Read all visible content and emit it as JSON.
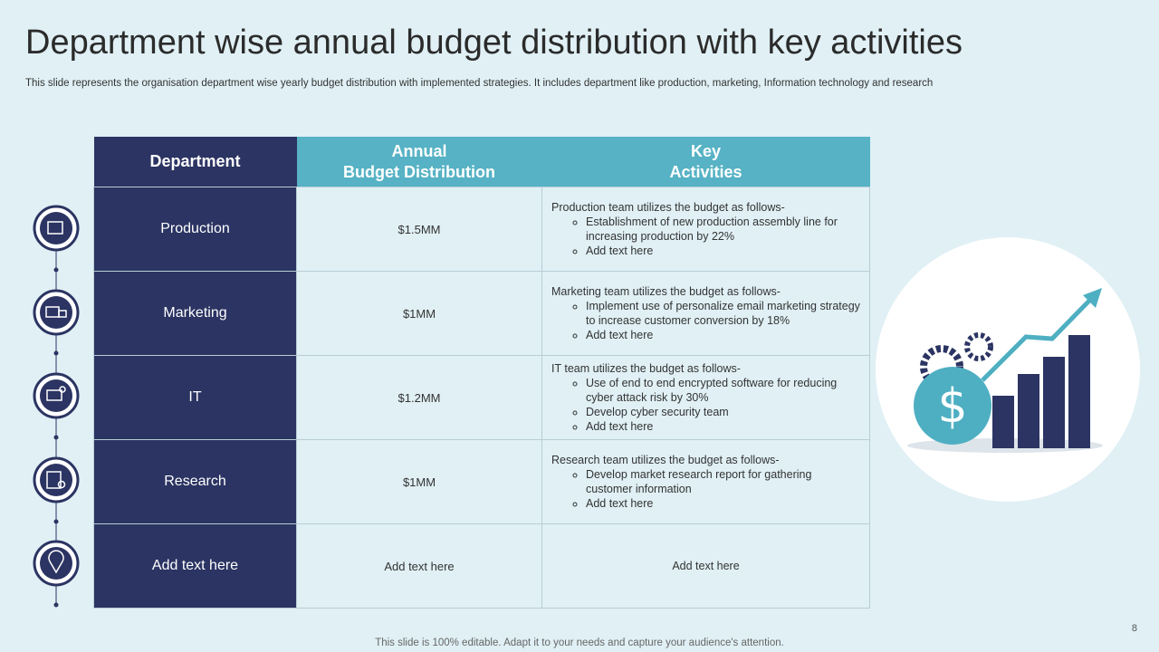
{
  "title": "Department wise annual budget distribution with key activities",
  "subtitle": "This slide represents the organisation department wise yearly budget distribution with implemented strategies. It includes department like production, marketing, Information technology and research",
  "table": {
    "headers": [
      [
        "Department"
      ],
      [
        "Annual",
        "Budget Distribution"
      ],
      [
        "Key",
        "Activities"
      ]
    ],
    "rows": [
      [
        "Production",
        "$1.5MM",
        {
          "intro": "Production team utilizes the budget as follows-",
          "bullets": [
            "Establishment of new production assembly line for increasing production  by 22%",
            "Add text here"
          ]
        }
      ],
      [
        "Marketing",
        "$1MM",
        {
          "intro": "Marketing team utilizes the budget as follows-",
          "bullets": [
            "Implement  use of personalize  email marketing strategy to increase customer conversion  by 18%",
            "Add text here"
          ]
        }
      ],
      [
        "IT",
        "$1.2MM",
        {
          "intro": "IT team utilizes the budget as follows-",
          "bullets": [
            "Use of end to end encrypted software for reducing cyber attack risk by 30%",
            "Develop  cyber security team",
            "Add text here"
          ]
        }
      ],
      [
        "Research",
        "$1MM",
        {
          "intro": "Research team utilizes the budget as follows-",
          "bullets": [
            "Develop  market research report for gathering customer information",
            "Add text here"
          ]
        }
      ],
      [
        "Add text here",
        "Add text here",
        "Add text here"
      ]
    ]
  },
  "page_number": "8",
  "footer": "This slide is 100% editable. Adapt it to your needs and capture your audience's attention."
}
